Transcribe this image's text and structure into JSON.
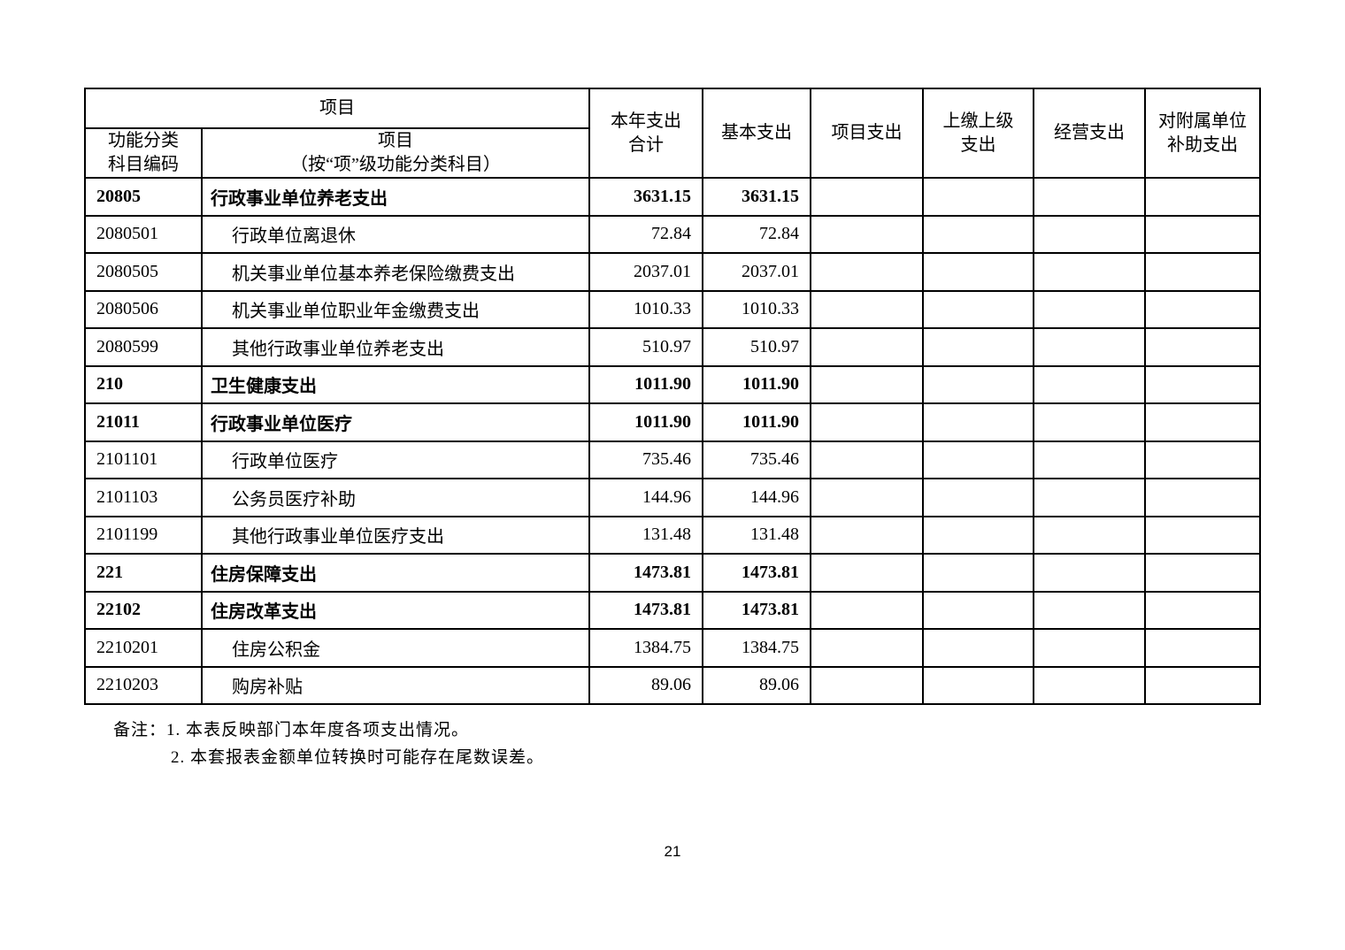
{
  "page": {
    "number": "21"
  },
  "table": {
    "header": {
      "group_title": "项目",
      "col_code": "功能分类\n科目编码",
      "col_item": "项目\n（按“项”级功能分类科目）",
      "col_total": "本年支出\n合计",
      "col_basic": "基本支出",
      "col_project": "项目支出",
      "col_upper": "上缴上级\n支出",
      "col_operating": "经营支出",
      "col_affiliated": "对附属单位\n补助支出"
    },
    "rows": [
      {
        "code": "20805",
        "name": "行政事业单位养老支出",
        "total": "3631.15",
        "basic": "3631.15",
        "project": "",
        "upper": "",
        "operating": "",
        "affiliated": "",
        "bold": true,
        "indent": false
      },
      {
        "code": "2080501",
        "name": "行政单位离退休",
        "total": "72.84",
        "basic": "72.84",
        "project": "",
        "upper": "",
        "operating": "",
        "affiliated": "",
        "bold": false,
        "indent": true
      },
      {
        "code": "2080505",
        "name": "机关事业单位基本养老保险缴费支出",
        "total": "2037.01",
        "basic": "2037.01",
        "project": "",
        "upper": "",
        "operating": "",
        "affiliated": "",
        "bold": false,
        "indent": true
      },
      {
        "code": "2080506",
        "name": "机关事业单位职业年金缴费支出",
        "total": "1010.33",
        "basic": "1010.33",
        "project": "",
        "upper": "",
        "operating": "",
        "affiliated": "",
        "bold": false,
        "indent": true
      },
      {
        "code": "2080599",
        "name": "其他行政事业单位养老支出",
        "total": "510.97",
        "basic": "510.97",
        "project": "",
        "upper": "",
        "operating": "",
        "affiliated": "",
        "bold": false,
        "indent": true
      },
      {
        "code": "210",
        "name": "卫生健康支出",
        "total": "1011.90",
        "basic": "1011.90",
        "project": "",
        "upper": "",
        "operating": "",
        "affiliated": "",
        "bold": true,
        "indent": false
      },
      {
        "code": "21011",
        "name": "行政事业单位医疗",
        "total": "1011.90",
        "basic": "1011.90",
        "project": "",
        "upper": "",
        "operating": "",
        "affiliated": "",
        "bold": true,
        "indent": false
      },
      {
        "code": "2101101",
        "name": "行政单位医疗",
        "total": "735.46",
        "basic": "735.46",
        "project": "",
        "upper": "",
        "operating": "",
        "affiliated": "",
        "bold": false,
        "indent": true
      },
      {
        "code": "2101103",
        "name": "公务员医疗补助",
        "total": "144.96",
        "basic": "144.96",
        "project": "",
        "upper": "",
        "operating": "",
        "affiliated": "",
        "bold": false,
        "indent": true
      },
      {
        "code": "2101199",
        "name": "其他行政事业单位医疗支出",
        "total": "131.48",
        "basic": "131.48",
        "project": "",
        "upper": "",
        "operating": "",
        "affiliated": "",
        "bold": false,
        "indent": true
      },
      {
        "code": "221",
        "name": "住房保障支出",
        "total": "1473.81",
        "basic": "1473.81",
        "project": "",
        "upper": "",
        "operating": "",
        "affiliated": "",
        "bold": true,
        "indent": false
      },
      {
        "code": "22102",
        "name": "住房改革支出",
        "total": "1473.81",
        "basic": "1473.81",
        "project": "",
        "upper": "",
        "operating": "",
        "affiliated": "",
        "bold": true,
        "indent": false
      },
      {
        "code": "2210201",
        "name": "住房公积金",
        "total": "1384.75",
        "basic": "1384.75",
        "project": "",
        "upper": "",
        "operating": "",
        "affiliated": "",
        "bold": false,
        "indent": true
      },
      {
        "code": "2210203",
        "name": "购房补贴",
        "total": "89.06",
        "basic": "89.06",
        "project": "",
        "upper": "",
        "operating": "",
        "affiliated": "",
        "bold": false,
        "indent": true
      }
    ]
  },
  "notes": {
    "line1": "备注：1. 本表反映部门本年度各项支出情况。",
    "line2": "2. 本套报表金额单位转换时可能存在尾数误差。"
  },
  "colors": {
    "ink": "#000000",
    "paper": "#ffffff"
  }
}
